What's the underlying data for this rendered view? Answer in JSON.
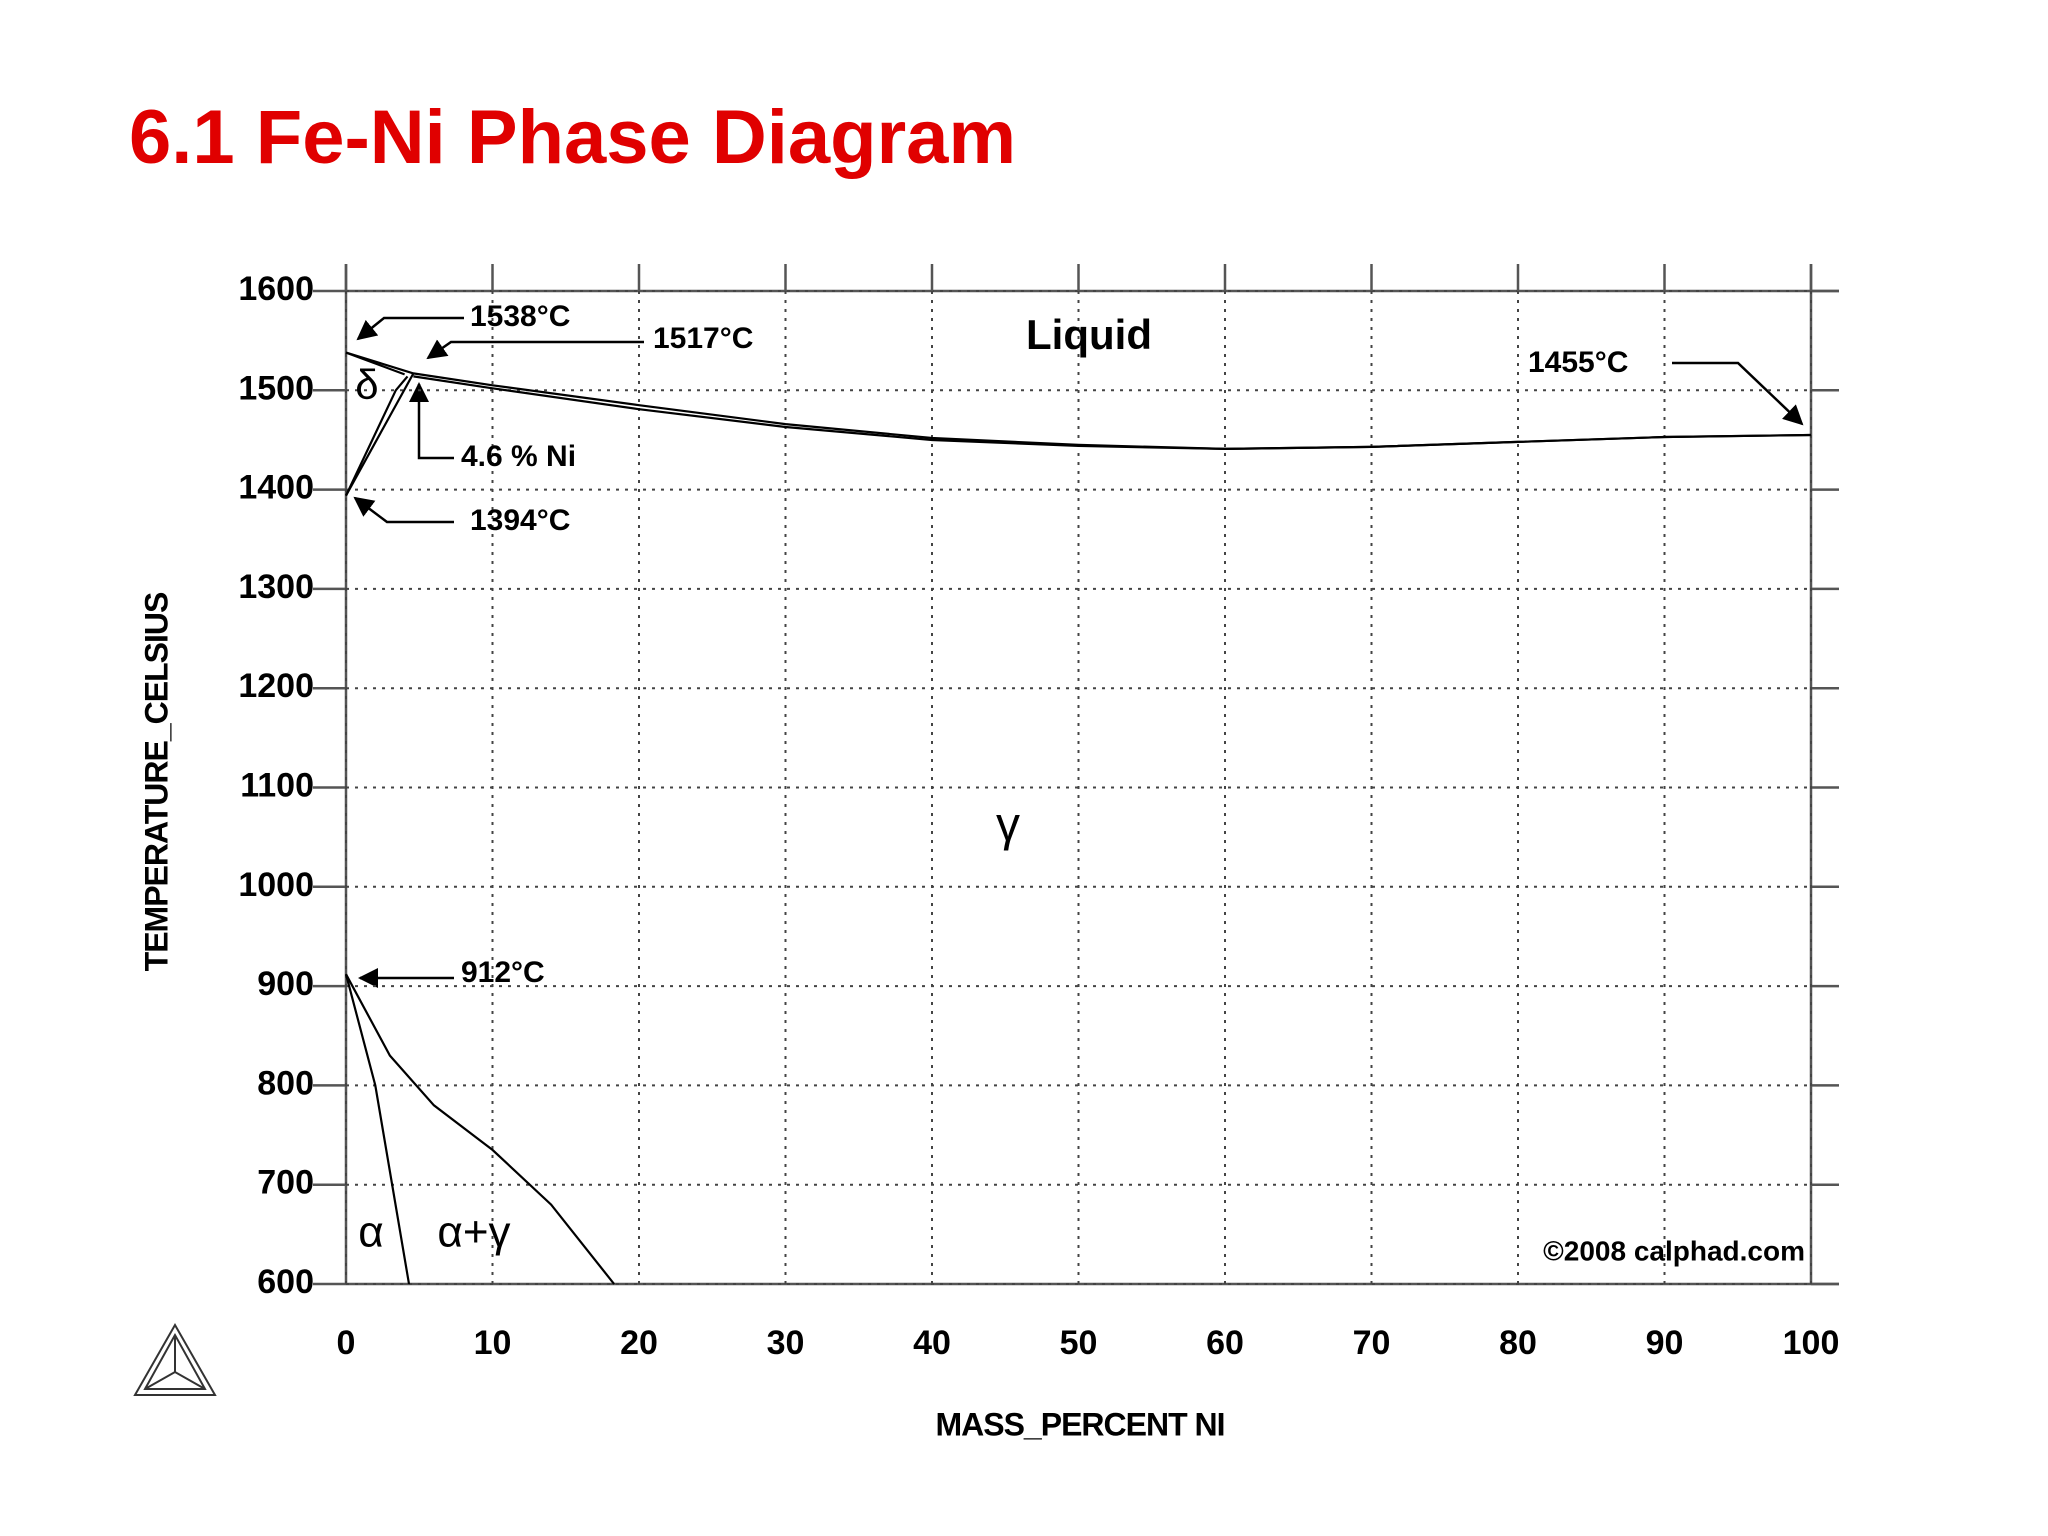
{
  "chart_data": {
    "type": "line",
    "title": "6.1 Fe-Ni Phase Diagram",
    "x_label": "MASS_PERCENT NI",
    "y_label": "TEMPERATURE_CELSIUS",
    "xlim": [
      0,
      100
    ],
    "ylim": [
      600,
      1600
    ],
    "xticks": [
      0,
      10,
      20,
      30,
      40,
      50,
      60,
      70,
      80,
      90,
      100
    ],
    "yticks": [
      600,
      700,
      800,
      900,
      1000,
      1100,
      1200,
      1300,
      1400,
      1500,
      1600
    ],
    "grid": true,
    "series": [
      {
        "color": "#000000",
        "x": [
          0,
          4.6,
          10,
          20,
          30,
          40,
          50,
          60,
          70,
          80,
          90,
          100
        ],
        "values": [
          1538,
          1517,
          1505,
          1485,
          1466,
          1452,
          1445,
          1441,
          1443,
          1448,
          1453,
          1455
        ]
      },
      {
        "color": "#000000",
        "x": [
          4.6,
          10,
          20,
          30,
          40,
          50,
          60,
          70,
          80,
          90,
          100
        ],
        "values": [
          1514,
          1502,
          1481,
          1463,
          1450,
          1444,
          1441,
          1443,
          1448,
          1453,
          1455
        ]
      },
      {
        "color": "#000000",
        "x": [
          0,
          4
        ],
        "values": [
          1538,
          1516
        ]
      },
      {
        "color": "#000000",
        "x": [
          0,
          3.4,
          4.2
        ],
        "values": [
          1394,
          1500,
          1514
        ]
      },
      {
        "color": "#000000",
        "x": [
          0,
          4.6
        ],
        "values": [
          1394,
          1517
        ]
      },
      {
        "color": "#000000",
        "x": [
          0,
          2,
          4.3
        ],
        "values": [
          912,
          800,
          600
        ]
      },
      {
        "color": "#000000",
        "x": [
          0,
          3,
          6,
          10,
          14,
          18.3
        ],
        "values": [
          912,
          830,
          780,
          735,
          680,
          600
        ]
      }
    ],
    "annotations": [
      "1538°C",
      "1517°C",
      "Liquid",
      "1455°C",
      "δ",
      "4.6 % Ni",
      "1394°C",
      "γ",
      "912°C",
      "α",
      "α+γ",
      "©2008 calphad.com"
    ]
  }
}
